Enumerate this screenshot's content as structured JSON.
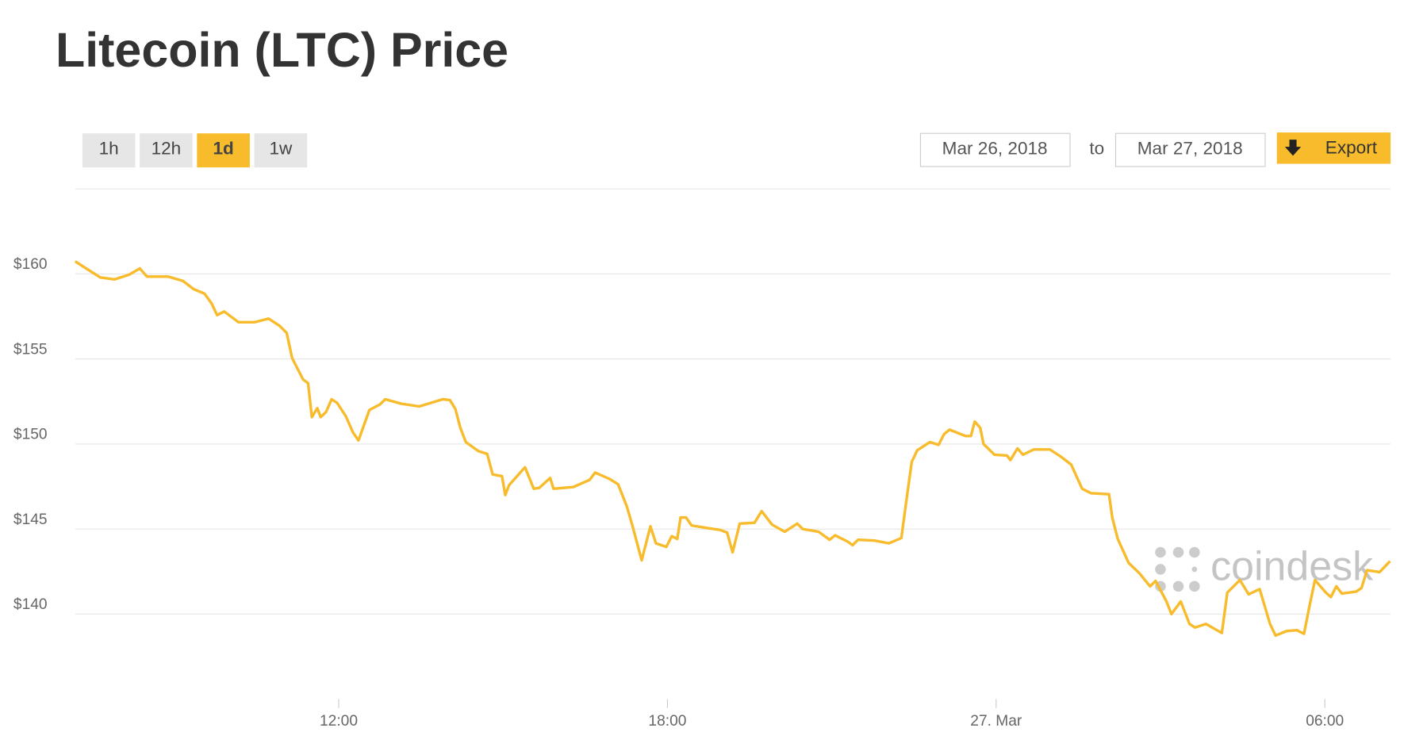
{
  "chart_data": {
    "type": "line",
    "title": "Litecoin (LTC) Price",
    "color": "#f7bb2b",
    "x": [
      7.19,
      7.39,
      7.65,
      7.91,
      8.17,
      8.37,
      8.5,
      8.89,
      9.16,
      9.35,
      9.55,
      9.68,
      9.78,
      9.91,
      10.17,
      10.46,
      10.72,
      10.92,
      11.05,
      11.15,
      11.35,
      11.44,
      11.51,
      11.61,
      11.67,
      11.77,
      11.87,
      11.97,
      12.13,
      12.26,
      12.36,
      12.56,
      12.75,
      12.85,
      13.14,
      13.47,
      13.9,
      14.03,
      14.13,
      14.22,
      14.32,
      14.55,
      14.71,
      14.81,
      14.98,
      15.04,
      15.11,
      15.4,
      15.56,
      15.66,
      15.86,
      15.92,
      16.28,
      16.58,
      16.68,
      16.94,
      17.1,
      17.26,
      17.36,
      17.53,
      17.69,
      17.79,
      17.98,
      18.08,
      18.18,
      18.24,
      18.34,
      18.44,
      18.74,
      18.96,
      19.09,
      19.19,
      19.32,
      19.59,
      19.72,
      19.91,
      20.14,
      20.37,
      20.47,
      20.76,
      20.96,
      21.06,
      21.29,
      21.38,
      21.48,
      21.78,
      22.04,
      22.27,
      22.36,
      22.46,
      22.56,
      22.79,
      22.95,
      23.05,
      23.15,
      23.44,
      23.54,
      23.61,
      23.71,
      23.77,
      23.97,
      24.2,
      24.26,
      24.39,
      24.49,
      24.69,
      24.98,
      25.18,
      25.37,
      25.57,
      25.73,
      26.06,
      26.12,
      26.22,
      26.42,
      26.61,
      26.81,
      26.91,
      27.11,
      27.2,
      27.37,
      27.53,
      27.63,
      27.83,
      28.12,
      28.22,
      28.45,
      28.61,
      28.81,
      29.0,
      29.1,
      29.3,
      29.49,
      29.62,
      29.72,
      29.82,
      30.02,
      30.11,
      30.21,
      30.31,
      30.57,
      30.67,
      30.77,
      31.0,
      31.19
    ],
    "values": [
      160.74,
      160.32,
      159.79,
      159.68,
      159.95,
      160.32,
      159.84,
      159.84,
      159.58,
      159.11,
      158.84,
      158.26,
      157.58,
      157.79,
      157.16,
      157.16,
      157.37,
      156.95,
      156.53,
      155.05,
      153.79,
      153.58,
      151.58,
      152.11,
      151.58,
      151.89,
      152.63,
      152.42,
      151.63,
      150.68,
      150.21,
      152.0,
      152.32,
      152.63,
      152.37,
      152.21,
      152.63,
      152.58,
      152.05,
      150.95,
      150.11,
      149.58,
      149.42,
      148.21,
      148.11,
      147.0,
      147.58,
      148.63,
      147.37,
      147.42,
      148.0,
      147.37,
      147.47,
      147.89,
      148.32,
      147.95,
      147.63,
      146.32,
      145.21,
      143.16,
      145.16,
      144.16,
      143.95,
      144.58,
      144.42,
      145.68,
      145.68,
      145.21,
      145.05,
      144.95,
      144.79,
      143.63,
      145.32,
      145.37,
      146.05,
      145.26,
      144.84,
      145.32,
      145.0,
      144.84,
      144.37,
      144.63,
      144.26,
      144.05,
      144.37,
      144.32,
      144.16,
      144.47,
      146.63,
      148.95,
      149.63,
      150.11,
      149.95,
      150.58,
      150.84,
      150.47,
      150.47,
      151.32,
      150.95,
      150.0,
      149.37,
      149.32,
      149.05,
      149.74,
      149.37,
      149.68,
      149.68,
      149.26,
      148.79,
      147.37,
      147.11,
      147.05,
      145.68,
      144.42,
      143.0,
      142.42,
      141.63,
      141.95,
      140.74,
      140.0,
      140.74,
      139.42,
      139.21,
      139.42,
      138.89,
      141.26,
      142.0,
      141.16,
      141.47,
      139.42,
      138.74,
      139.0,
      139.05,
      138.84,
      140.47,
      142.0,
      141.26,
      141.0,
      141.63,
      141.21,
      141.32,
      141.53,
      142.58,
      142.47,
      143.11
    ],
    "xlim": [
      7.19,
      31.2
    ],
    "xticks": [
      {
        "value": 12,
        "label": "12:00"
      },
      {
        "value": 18,
        "label": "18:00"
      },
      {
        "value": 24,
        "label": "27. Mar"
      },
      {
        "value": 30,
        "label": "06:00"
      }
    ],
    "ylim": [
      135,
      165
    ],
    "yticks": [
      {
        "value": 140,
        "label": "$140"
      },
      {
        "value": 145,
        "label": "$145"
      },
      {
        "value": 150,
        "label": "$150"
      },
      {
        "value": 155,
        "label": "$155"
      },
      {
        "value": 160,
        "label": "$160"
      }
    ],
    "grid": true
  },
  "ui": {
    "ranges": [
      "1h",
      "12h",
      "1d",
      "1w"
    ],
    "active_range": "1d",
    "from": "Mar 26, 2018",
    "to_label": "to",
    "to": "Mar 27, 2018",
    "export": "Export",
    "watermark": "coindesk"
  }
}
